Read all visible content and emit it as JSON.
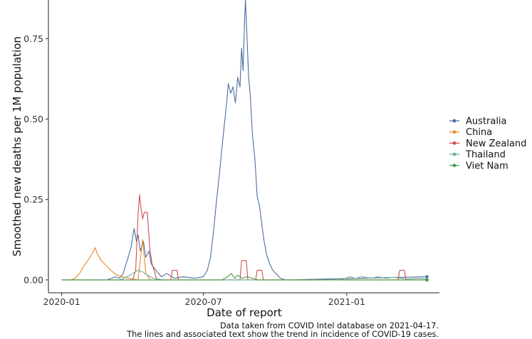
{
  "chart_data": {
    "type": "line",
    "title": "",
    "xlabel": "Date of report",
    "ylabel": "Smoothed new deaths per 1M population",
    "x_ticks": [
      "2020-01",
      "2020-07",
      "2021-01"
    ],
    "x_tick_dates": [
      "2020-01-01",
      "2020-07-01",
      "2021-01-01"
    ],
    "y_ticks": [
      "0.00",
      "0.25",
      "0.50",
      "0.75"
    ],
    "y_tick_values": [
      0,
      0.25,
      0.5,
      0.75
    ],
    "xlim": [
      "2019-12-15",
      "2021-04-30"
    ],
    "ylim": [
      -0.04,
      0.87
    ],
    "grid": false,
    "legend_position": "right",
    "caption": [
      "Data taken from COVID Intel database on 2021-04-17.",
      "The lines and associated text show the trend in incidence of COVID-19 cases."
    ],
    "series": [
      {
        "name": "Australia",
        "color": "#4a6fa0",
        "points": [
          [
            "2020-01-01",
            0
          ],
          [
            "2020-02-28",
            0
          ],
          [
            "2020-03-05",
            0.005
          ],
          [
            "2020-03-10",
            0.01
          ],
          [
            "2020-03-15",
            0.005
          ],
          [
            "2020-03-20",
            0.02
          ],
          [
            "2020-03-25",
            0.06
          ],
          [
            "2020-03-30",
            0.1
          ],
          [
            "2020-04-03",
            0.16
          ],
          [
            "2020-04-06",
            0.12
          ],
          [
            "2020-04-08",
            0.14
          ],
          [
            "2020-04-11",
            0.09
          ],
          [
            "2020-04-15",
            0.12
          ],
          [
            "2020-04-18",
            0.07
          ],
          [
            "2020-04-22",
            0.09
          ],
          [
            "2020-04-25",
            0.05
          ],
          [
            "2020-05-01",
            0.03
          ],
          [
            "2020-05-08",
            0.01
          ],
          [
            "2020-05-15",
            0.02
          ],
          [
            "2020-05-25",
            0.005
          ],
          [
            "2020-06-05",
            0.01
          ],
          [
            "2020-06-20",
            0.005
          ],
          [
            "2020-07-01",
            0.01
          ],
          [
            "2020-07-06",
            0.03
          ],
          [
            "2020-07-10",
            0.07
          ],
          [
            "2020-07-14",
            0.15
          ],
          [
            "2020-07-18",
            0.25
          ],
          [
            "2020-07-22",
            0.34
          ],
          [
            "2020-07-26",
            0.44
          ],
          [
            "2020-07-30",
            0.53
          ],
          [
            "2020-08-02",
            0.61
          ],
          [
            "2020-08-05",
            0.58
          ],
          [
            "2020-08-08",
            0.6
          ],
          [
            "2020-08-11",
            0.55
          ],
          [
            "2020-08-14",
            0.63
          ],
          [
            "2020-08-17",
            0.6
          ],
          [
            "2020-08-19",
            0.72
          ],
          [
            "2020-08-21",
            0.65
          ],
          [
            "2020-08-23",
            0.82
          ],
          [
            "2020-08-24",
            0.87
          ],
          [
            "2020-08-26",
            0.75
          ],
          [
            "2020-08-28",
            0.63
          ],
          [
            "2020-08-30",
            0.58
          ],
          [
            "2020-09-02",
            0.45
          ],
          [
            "2020-09-05",
            0.38
          ],
          [
            "2020-09-08",
            0.26
          ],
          [
            "2020-09-11",
            0.23
          ],
          [
            "2020-09-14",
            0.17
          ],
          [
            "2020-09-17",
            0.12
          ],
          [
            "2020-09-20",
            0.08
          ],
          [
            "2020-09-24",
            0.05
          ],
          [
            "2020-09-28",
            0.03
          ],
          [
            "2020-10-02",
            0.02
          ],
          [
            "2020-10-08",
            0.005
          ],
          [
            "2020-10-15",
            0
          ],
          [
            "2021-04-14",
            0.01
          ]
        ]
      },
      {
        "name": "China",
        "color": "#e8892e",
        "points": [
          [
            "2020-01-01",
            0
          ],
          [
            "2020-01-12",
            0
          ],
          [
            "2020-01-18",
            0.005
          ],
          [
            "2020-01-24",
            0.02
          ],
          [
            "2020-01-30",
            0.045
          ],
          [
            "2020-02-05",
            0.065
          ],
          [
            "2020-02-10",
            0.085
          ],
          [
            "2020-02-13",
            0.1
          ],
          [
            "2020-02-16",
            0.08
          ],
          [
            "2020-02-21",
            0.06
          ],
          [
            "2020-02-27",
            0.045
          ],
          [
            "2020-03-04",
            0.03
          ],
          [
            "2020-03-10",
            0.018
          ],
          [
            "2020-03-18",
            0.01
          ],
          [
            "2020-03-28",
            0.005
          ],
          [
            "2020-04-08",
            0
          ],
          [
            "2020-04-14",
            0.125
          ],
          [
            "2020-04-18",
            0.02
          ],
          [
            "2020-04-24",
            0
          ],
          [
            "2021-04-14",
            0
          ]
        ]
      },
      {
        "name": "New Zealand",
        "color": "#d44d4d",
        "points": [
          [
            "2020-01-01",
            0
          ],
          [
            "2020-04-01",
            0
          ],
          [
            "2020-04-05",
            0.03
          ],
          [
            "2020-04-08",
            0.2
          ],
          [
            "2020-04-10",
            0.265
          ],
          [
            "2020-04-12",
            0.22
          ],
          [
            "2020-04-14",
            0.19
          ],
          [
            "2020-04-16",
            0.21
          ],
          [
            "2020-04-20",
            0.21
          ],
          [
            "2020-04-23",
            0.1
          ],
          [
            "2020-04-26",
            0.05
          ],
          [
            "2020-04-30",
            0.02
          ],
          [
            "2020-05-02",
            0
          ],
          [
            "2020-05-20",
            0
          ],
          [
            "2020-05-22",
            0.03
          ],
          [
            "2020-05-28",
            0.03
          ],
          [
            "2020-05-30",
            0
          ],
          [
            "2020-08-17",
            0
          ],
          [
            "2020-08-19",
            0.06
          ],
          [
            "2020-08-25",
            0.06
          ],
          [
            "2020-08-27",
            0
          ],
          [
            "2020-09-06",
            0
          ],
          [
            "2020-09-08",
            0.03
          ],
          [
            "2020-09-14",
            0.03
          ],
          [
            "2020-09-16",
            0
          ],
          [
            "2021-03-08",
            0
          ],
          [
            "2021-03-10",
            0.03
          ],
          [
            "2021-03-16",
            0.03
          ],
          [
            "2021-03-18",
            0
          ],
          [
            "2021-04-14",
            0
          ]
        ]
      },
      {
        "name": "Thailand",
        "color": "#6aab9c",
        "points": [
          [
            "2020-01-01",
            0
          ],
          [
            "2020-03-15",
            0
          ],
          [
            "2020-03-25",
            0.01
          ],
          [
            "2020-04-01",
            0.02
          ],
          [
            "2020-04-08",
            0.03
          ],
          [
            "2020-04-14",
            0.025
          ],
          [
            "2020-04-20",
            0.015
          ],
          [
            "2020-04-28",
            0.005
          ],
          [
            "2020-05-10",
            0
          ],
          [
            "2020-12-25",
            0
          ],
          [
            "2021-01-05",
            0.01
          ],
          [
            "2021-01-12",
            0.005
          ],
          [
            "2021-01-20",
            0.01
          ],
          [
            "2021-02-01",
            0.005
          ],
          [
            "2021-02-10",
            0.01
          ],
          [
            "2021-02-20",
            0.005
          ],
          [
            "2021-03-01",
            0.008
          ],
          [
            "2021-03-20",
            0.003
          ],
          [
            "2021-04-05",
            0.005
          ],
          [
            "2021-04-14",
            0.003
          ]
        ]
      },
      {
        "name": "Viet Nam",
        "color": "#4e9a48",
        "points": [
          [
            "2020-01-01",
            0
          ],
          [
            "2020-07-25",
            0
          ],
          [
            "2020-08-01",
            0.01
          ],
          [
            "2020-08-06",
            0.02
          ],
          [
            "2020-08-10",
            0.005
          ],
          [
            "2020-08-14",
            0.015
          ],
          [
            "2020-08-20",
            0.005
          ],
          [
            "2020-08-26",
            0.01
          ],
          [
            "2020-09-02",
            0.005
          ],
          [
            "2020-09-10",
            0
          ],
          [
            "2021-04-14",
            0
          ]
        ]
      }
    ]
  }
}
